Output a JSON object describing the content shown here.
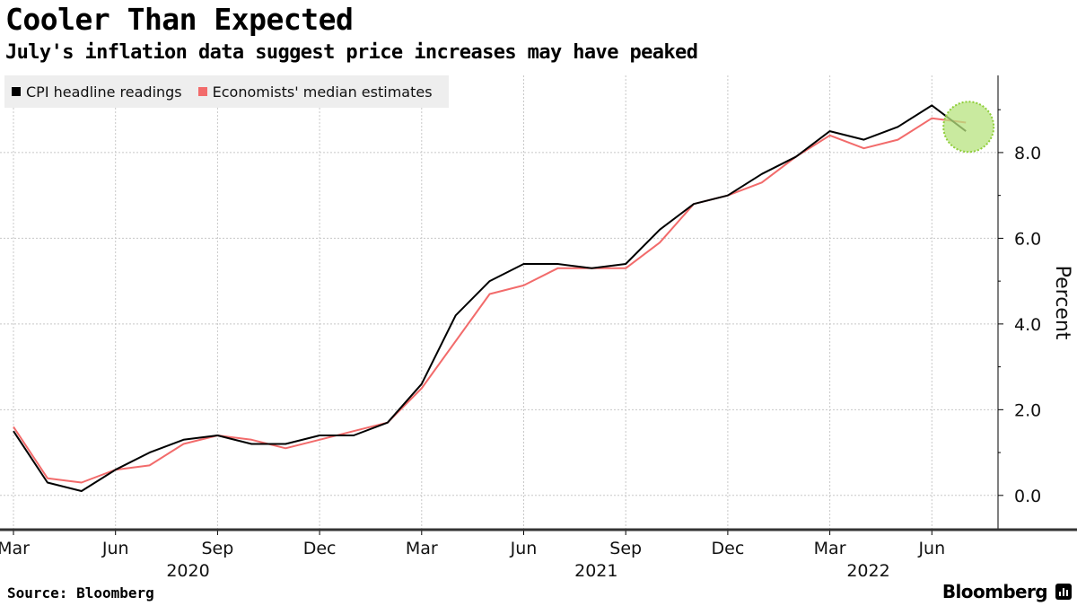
{
  "header": {
    "title": "Cooler Than Expected",
    "subtitle": "July's inflation data suggest price increases may have peaked"
  },
  "footer": {
    "source": "Source: Bloomberg",
    "brand": "Bloomberg"
  },
  "icons": {
    "brand": "bloomberg-terminal-icon"
  },
  "colors": {
    "cpi": "#000000",
    "estimates": "#f26b6b",
    "highlight_fill": "#b7e37f",
    "highlight_stroke": "#8fce3a",
    "grid": "#c8c8c8",
    "legend_bg": "#eeeeee"
  },
  "chart_data": {
    "type": "line",
    "title": "Cooler Than Expected",
    "subtitle": "July's inflation data suggest price increases may have peaked",
    "ylabel": "Percent",
    "ylim": [
      -0.8,
      9.8
    ],
    "yticks": [
      0.0,
      2.0,
      4.0,
      6.0,
      8.0
    ],
    "ytick_labels": [
      "0.0",
      "2.0",
      "4.0",
      "6.0",
      "8.0"
    ],
    "y_axis_side": "right",
    "grid": true,
    "legend": {
      "placement": "top-left",
      "entries": [
        "CPI headline readings",
        "Economists' median estimates"
      ]
    },
    "x": [
      "2020-03",
      "2020-04",
      "2020-05",
      "2020-06",
      "2020-07",
      "2020-08",
      "2020-09",
      "2020-10",
      "2020-11",
      "2020-12",
      "2021-01",
      "2021-02",
      "2021-03",
      "2021-04",
      "2021-05",
      "2021-06",
      "2021-07",
      "2021-08",
      "2021-09",
      "2021-10",
      "2021-11",
      "2021-12",
      "2022-01",
      "2022-02",
      "2022-03",
      "2022-04",
      "2022-05",
      "2022-06",
      "2022-07"
    ],
    "xtick_months": [
      "Mar",
      "Jun",
      "Sep",
      "Dec",
      "Mar",
      "Jun",
      "Sep",
      "Dec",
      "Mar",
      "Jun"
    ],
    "xtick_positions": [
      "2020-03",
      "2020-06",
      "2020-09",
      "2020-12",
      "2021-03",
      "2021-06",
      "2021-09",
      "2021-12",
      "2022-03",
      "2022-06"
    ],
    "year_labels": [
      {
        "label": "2020",
        "at": "2020-08"
      },
      {
        "label": "2021",
        "at": "2021-08"
      },
      {
        "label": "2022",
        "at": "2022-04"
      }
    ],
    "series": [
      {
        "name": "CPI headline readings",
        "values": [
          1.5,
          0.3,
          0.1,
          0.6,
          1.0,
          1.3,
          1.4,
          1.2,
          1.2,
          1.4,
          1.4,
          1.7,
          2.6,
          4.2,
          5.0,
          5.4,
          5.4,
          5.3,
          5.4,
          6.2,
          6.8,
          7.0,
          7.5,
          7.9,
          8.5,
          8.3,
          8.6,
          9.1,
          8.5
        ]
      },
      {
        "name": "Economists' median estimates",
        "values": [
          1.6,
          0.4,
          0.3,
          0.6,
          0.7,
          1.2,
          1.4,
          1.3,
          1.1,
          1.3,
          1.5,
          1.7,
          2.5,
          3.6,
          4.7,
          4.9,
          5.3,
          5.3,
          5.3,
          5.9,
          6.8,
          7.0,
          7.3,
          7.9,
          8.4,
          8.1,
          8.3,
          8.8,
          8.7
        ]
      }
    ],
    "highlight": {
      "x": "2022-07",
      "y": 8.6
    }
  }
}
